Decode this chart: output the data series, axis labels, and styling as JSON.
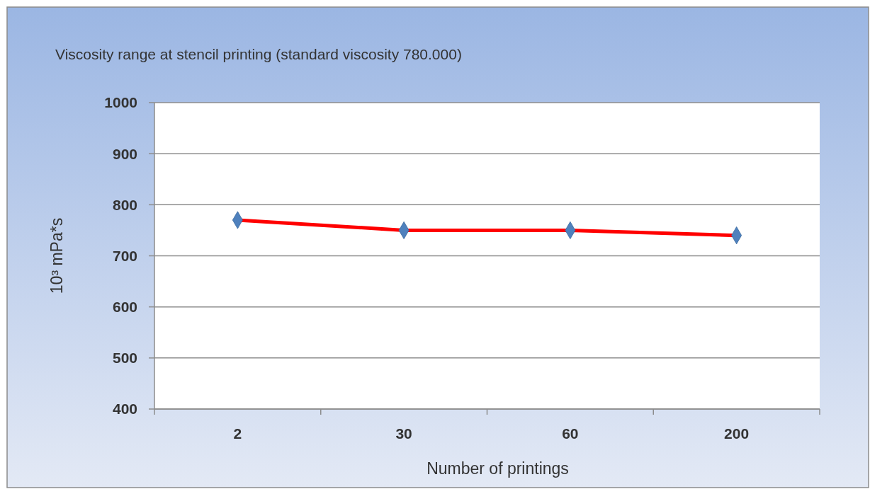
{
  "chart_data": {
    "type": "line",
    "title": "Viscosity range at stencil printing (standard viscosity 780.000)",
    "xlabel": "Number of printings",
    "ylabel": "10³ mPa*s",
    "categories": [
      "2",
      "30",
      "60",
      "200"
    ],
    "series": [
      {
        "color": "#ff0000",
        "colors": [
          "#4f81bd",
          "#4f81bd",
          "#4f81bd",
          "#4f81bd"
        ],
        "values": [
          770,
          750,
          750,
          740
        ]
      }
    ],
    "ylim": [
      400,
      1000
    ],
    "yticks": [
      400,
      500,
      600,
      700,
      800,
      900,
      1000
    ],
    "grid": "y",
    "marker": "diamond",
    "line_style": "solid"
  }
}
